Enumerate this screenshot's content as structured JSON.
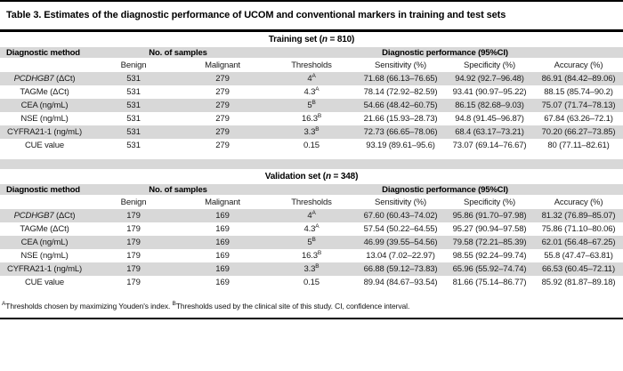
{
  "title": "Table 3. Estimates of the diagnostic performance of UCOM and conventional markers in training and test sets",
  "colors": {
    "row_shade": "#d8d8d8",
    "rule": "#000000",
    "text": "#111111"
  },
  "headers": {
    "method": "Diagnostic method",
    "samples": "No. of samples",
    "performance": "Diagnostic performance (95%CI)",
    "columns": [
      "Benign",
      "Malignant",
      "Thresholds",
      "Sensitivity (%)",
      "Specificity (%)",
      "Accuracy (%)"
    ]
  },
  "sections": [
    {
      "set_name": "Training set",
      "n": "810",
      "rows": [
        {
          "method": {
            "name": "PCDHGB7",
            "unit": " (ΔCt)",
            "italic": true
          },
          "benign": "531",
          "malignant": "279",
          "threshold": {
            "value": "4",
            "sup": "A"
          },
          "sensitivity": "71.68 (66.13–76.65)",
          "specificity": "94.92 (92.7–96.48)",
          "accuracy": "86.91 (84.42–89.06)"
        },
        {
          "method": {
            "name": "TAGMe (ΔCt)",
            "unit": "",
            "italic": false
          },
          "benign": "531",
          "malignant": "279",
          "threshold": {
            "value": "4.3",
            "sup": "A"
          },
          "sensitivity": "78.14 (72.92–82.59)",
          "specificity": "93.41 (90.97–95.22)",
          "accuracy": "88.15 (85.74–90.2)"
        },
        {
          "method": {
            "name": "CEA (ng/mL)",
            "unit": "",
            "italic": false
          },
          "benign": "531",
          "malignant": "279",
          "threshold": {
            "value": "5",
            "sup": "B"
          },
          "sensitivity": "54.66 (48.42–60.75)",
          "specificity": "86.15 (82.68–9.03)",
          "accuracy": "75.07 (71.74–78.13)"
        },
        {
          "method": {
            "name": "NSE (ng/mL)",
            "unit": "",
            "italic": false
          },
          "benign": "531",
          "malignant": "279",
          "threshold": {
            "value": "16.3",
            "sup": "B"
          },
          "sensitivity": "21.66 (15.93–28.73)",
          "specificity": "94.8 (91.45–96.87)",
          "accuracy": "67.84 (63.26–72.1)"
        },
        {
          "method": {
            "name": "CYFRA21-1 (ng/mL)",
            "unit": "",
            "italic": false
          },
          "benign": "531",
          "malignant": "279",
          "threshold": {
            "value": "3.3",
            "sup": "B"
          },
          "sensitivity": "72.73 (66.65–78.06)",
          "specificity": "68.4 (63.17–73.21)",
          "accuracy": "70.20 (66.27–73.85)"
        },
        {
          "method": {
            "name": "CUE value",
            "unit": "",
            "italic": false
          },
          "benign": "531",
          "malignant": "279",
          "threshold": {
            "value": "0.15",
            "sup": ""
          },
          "sensitivity": "93.19 (89.61–95.6)",
          "specificity": "73.07 (69.14–76.67)",
          "accuracy": "80 (77.11–82.61)"
        }
      ]
    },
    {
      "set_name": "Validation set",
      "n": "348",
      "rows": [
        {
          "method": {
            "name": "PCDHGB7",
            "unit": " (ΔCt)",
            "italic": true
          },
          "benign": "179",
          "malignant": "169",
          "threshold": {
            "value": "4",
            "sup": "A"
          },
          "sensitivity": "67.60 (60.43–74.02)",
          "specificity": "95.86 (91.70–97.98)",
          "accuracy": "81.32 (76.89–85.07)"
        },
        {
          "method": {
            "name": "TAGMe (ΔCt)",
            "unit": "",
            "italic": false
          },
          "benign": "179",
          "malignant": "169",
          "threshold": {
            "value": "4.3",
            "sup": "A"
          },
          "sensitivity": "57.54 (50.22–64.55)",
          "specificity": "95.27 (90.94–97.58)",
          "accuracy": "75.86 (71.10–80.06)"
        },
        {
          "method": {
            "name": "CEA (ng/mL)",
            "unit": "",
            "italic": false
          },
          "benign": "179",
          "malignant": "169",
          "threshold": {
            "value": "5",
            "sup": "B"
          },
          "sensitivity": "46.99 (39.55–54.56)",
          "specificity": "79.58 (72.21–85.39)",
          "accuracy": "62.01 (56.48–67.25)"
        },
        {
          "method": {
            "name": "NSE (ng/mL)",
            "unit": "",
            "italic": false
          },
          "benign": "179",
          "malignant": "169",
          "threshold": {
            "value": "16.3",
            "sup": "B"
          },
          "sensitivity": "13.04 (7.02–22.97)",
          "specificity": "98.55 (92.24–99.74)",
          "accuracy": "55.8 (47.47–63.81)"
        },
        {
          "method": {
            "name": "CYFRA21-1 (ng/mL)",
            "unit": "",
            "italic": false
          },
          "benign": "179",
          "malignant": "169",
          "threshold": {
            "value": "3.3",
            "sup": "B"
          },
          "sensitivity": "66.88 (59.12–73.83)",
          "specificity": "65.96 (55.92–74.74)",
          "accuracy": "66.53 (60.45–72.11)"
        },
        {
          "method": {
            "name": "CUE value",
            "unit": "",
            "italic": false
          },
          "benign": "179",
          "malignant": "169",
          "threshold": {
            "value": "0.15",
            "sup": ""
          },
          "sensitivity": "89.94 (84.67–93.54)",
          "specificity": "81.66 (75.14–86.77)",
          "accuracy": "85.92 (81.87–89.18)"
        }
      ]
    }
  ],
  "footnote": {
    "parts": [
      {
        "sup": "A",
        "text": "Thresholds chosen by maximizing Youden's index. "
      },
      {
        "sup": "B",
        "text": "Thresholds used by the clinical site of this study. CI, confidence interval."
      }
    ]
  }
}
